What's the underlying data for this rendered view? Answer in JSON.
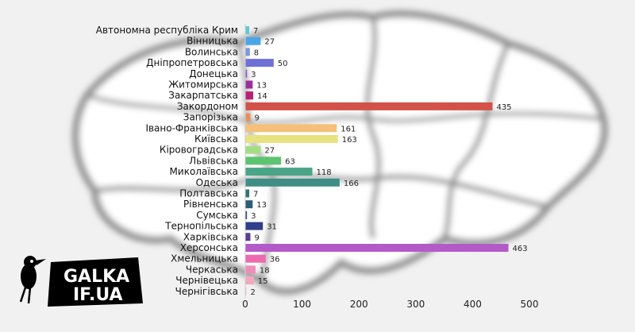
{
  "chart_data": {
    "type": "bar",
    "orientation": "horizontal",
    "categories": [
      "Автономна республіка Крим",
      "Вінницька",
      "Волинська",
      "Дніпропетровська",
      "Донецька",
      "Житомирська",
      "Закарпатська",
      "Закордоном",
      "Запорізька",
      "Івано-Франківська",
      "Київська",
      "Кіровоградська",
      "Львівська",
      "Миколаївська",
      "Одеська",
      "Полтавська",
      "Рівненська",
      "Сумська",
      "Тернопільська",
      "Харківська",
      "Херсонська",
      "Хмельницька",
      "Черкаська",
      "Чернівецька",
      "Чернігівська"
    ],
    "values": [
      7,
      27,
      8,
      50,
      3,
      13,
      14,
      435,
      9,
      161,
      163,
      27,
      63,
      118,
      166,
      7,
      13,
      3,
      31,
      9,
      463,
      36,
      18,
      15,
      2
    ],
    "colors": [
      "#62c8d8",
      "#4aa6e6",
      "#7b97de",
      "#6f6fd8",
      "#8a56c8",
      "#9b2e9a",
      "#b82072",
      "#d2524a",
      "#e8905a",
      "#f4c07a",
      "#e6e280",
      "#a6dc86",
      "#5cc470",
      "#4aa488",
      "#3e8e86",
      "#327376",
      "#2c5e76",
      "#2f4c84",
      "#2f3f8a",
      "#5a3c96",
      "#b45ac8",
      "#ec6ab0",
      "#f08cb8",
      "#f2a8be",
      "#f4c2c6"
    ],
    "xticks": [
      "0",
      "100",
      "200",
      "300",
      "400",
      "500"
    ],
    "xlim": [
      0,
      500
    ],
    "grid": false,
    "legend": "none",
    "title": "",
    "xlabel": "",
    "ylabel": ""
  },
  "logo": {
    "line1": "GALKA",
    "line2": "IF.UA"
  }
}
